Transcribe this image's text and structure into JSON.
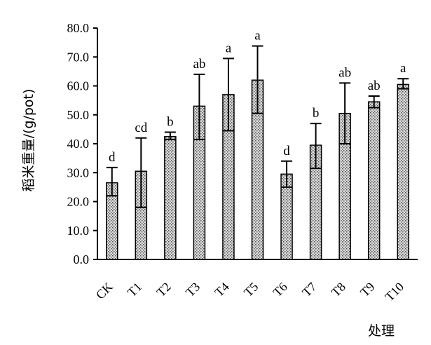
{
  "chart_data": {
    "type": "bar",
    "categories": [
      "CK",
      "T1",
      "T2",
      "T3",
      "T4",
      "T5",
      "T6",
      "T7",
      "T8",
      "T9",
      "T10"
    ],
    "values": [
      26.5,
      30.5,
      42.5,
      53.0,
      57.0,
      62.0,
      29.5,
      39.5,
      50.5,
      54.5,
      60.5
    ],
    "error_upper": [
      31.8,
      42.0,
      44.0,
      64.0,
      69.5,
      73.8,
      34.0,
      47.0,
      61.0,
      56.5,
      62.5
    ],
    "error_lower": [
      22.0,
      18.0,
      41.5,
      41.5,
      44.5,
      50.5,
      25.0,
      31.5,
      40.0,
      52.5,
      59.0
    ],
    "significance": [
      "d",
      "cd",
      "b",
      "ab",
      "a",
      "a",
      "d",
      "b",
      "ab",
      "ab",
      "a"
    ],
    "ylim": [
      0,
      80
    ],
    "yticks": [
      "0.0",
      "10.0",
      "20.0",
      "30.0",
      "40.0",
      "50.0",
      "60.0",
      "70.0",
      "80.0"
    ],
    "ylabel": "稻米重量/(g/pot)",
    "xlabel": "处理",
    "grid": false,
    "legend": "none"
  }
}
